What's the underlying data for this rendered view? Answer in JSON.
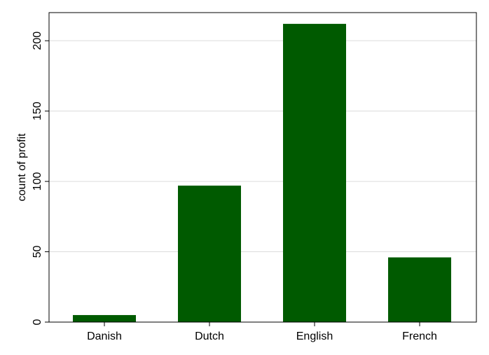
{
  "chart_data": {
    "type": "bar",
    "title": "",
    "xlabel": "",
    "ylabel": "count of profit",
    "categories": [
      "Danish",
      "Dutch",
      "English",
      "French"
    ],
    "values": [
      5,
      97,
      212,
      46
    ],
    "ylim": [
      0,
      220
    ],
    "yticks": [
      0,
      50,
      100,
      150,
      200
    ],
    "grid": true,
    "legend": "none",
    "colors": {
      "bar": "#005a00",
      "grid": "#dcdcdc",
      "axis": "#000000",
      "background": "#ffffff"
    }
  }
}
